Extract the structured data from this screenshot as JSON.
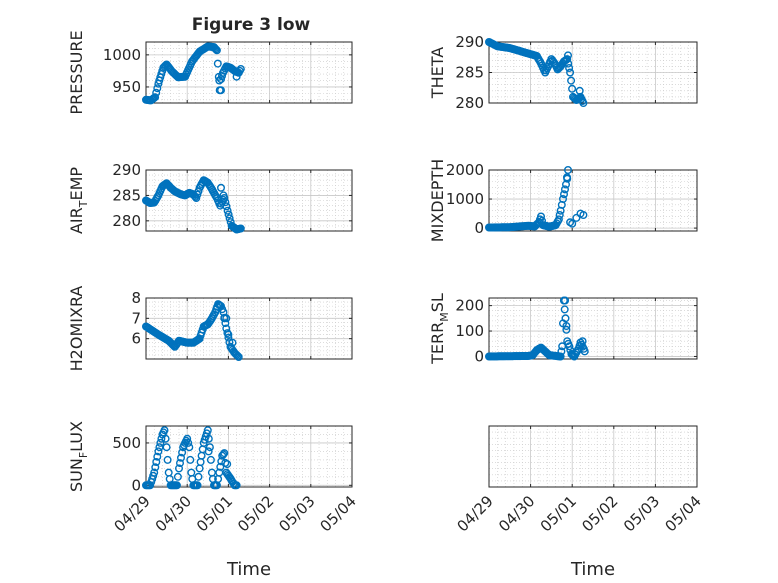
{
  "title": "Figure 3 low",
  "colors": {
    "marker": "#0072BD",
    "axis": "#262626",
    "grid": "#c8c8c8"
  },
  "chart_data": [
    {
      "type": "scatter",
      "ylabel": "PRESSURE",
      "ylim": [
        925,
        1020
      ],
      "yticks": [
        950,
        1000
      ],
      "anchors": [
        [
          0,
          930
        ],
        [
          0.12,
          929
        ],
        [
          0.22,
          934
        ],
        [
          0.3,
          955
        ],
        [
          0.42,
          980
        ],
        [
          0.5,
          985
        ],
        [
          0.62,
          975
        ],
        [
          0.78,
          965
        ],
        [
          0.95,
          966
        ],
        [
          1.12,
          990
        ],
        [
          1.3,
          1005
        ],
        [
          1.5,
          1013
        ],
        [
          1.65,
          1012
        ],
        [
          1.72,
          1007
        ],
        [
          1.79,
          945
        ],
        [
          1.82,
          962
        ],
        [
          1.87,
          972
        ],
        [
          1.95,
          982
        ],
        [
          2.05,
          980
        ],
        [
          2.15,
          975
        ],
        [
          2.25,
          972
        ],
        [
          2.3,
          978
        ]
      ],
      "isolated": [
        [
          1.78,
          960
        ],
        [
          1.82,
          945
        ],
        [
          2.2,
          966
        ]
      ]
    },
    {
      "type": "scatter",
      "ylabel": "THETA",
      "ylim": [
        280,
        290
      ],
      "yticks": [
        280,
        285,
        290
      ],
      "anchors": [
        [
          0,
          290
        ],
        [
          0.2,
          289.3
        ],
        [
          0.5,
          289.0
        ],
        [
          0.8,
          288.4
        ],
        [
          1.0,
          288.0
        ],
        [
          1.15,
          287.7
        ],
        [
          1.25,
          286.5
        ],
        [
          1.35,
          285.0
        ],
        [
          1.42,
          286.0
        ],
        [
          1.5,
          287.2
        ],
        [
          1.58,
          286.5
        ],
        [
          1.65,
          285.5
        ],
        [
          1.72,
          286.0
        ],
        [
          1.8,
          286.8
        ],
        [
          1.88,
          287.2
        ],
        [
          1.95,
          285.0
        ],
        [
          2.02,
          281.0
        ],
        [
          2.1,
          280.5
        ],
        [
          2.2,
          281.0
        ],
        [
          2.27,
          280.0
        ]
      ],
      "isolated": [
        [
          1.9,
          287.8
        ],
        [
          2.18,
          282.0
        ]
      ]
    },
    {
      "type": "scatter",
      "ylabel": "AIR",
      "ylabel_sub": "T",
      "ylabel_rest": "EMP",
      "ylim": [
        278,
        290
      ],
      "yticks": [
        280,
        285,
        290
      ],
      "anchors": [
        [
          0,
          284
        ],
        [
          0.1,
          283.5
        ],
        [
          0.2,
          283.6
        ],
        [
          0.3,
          285.0
        ],
        [
          0.4,
          286.8
        ],
        [
          0.5,
          287.4
        ],
        [
          0.6,
          286.5
        ],
        [
          0.7,
          285.8
        ],
        [
          0.85,
          285.2
        ],
        [
          0.95,
          285.0
        ],
        [
          1.05,
          285.5
        ],
        [
          1.15,
          285.2
        ],
        [
          1.22,
          284.5
        ],
        [
          1.3,
          286.5
        ],
        [
          1.4,
          288.0
        ],
        [
          1.5,
          287.5
        ],
        [
          1.58,
          286.5
        ],
        [
          1.65,
          285.5
        ],
        [
          1.72,
          284.5
        ],
        [
          1.8,
          283.0
        ],
        [
          1.9,
          284.5
        ],
        [
          1.98,
          282.0
        ],
        [
          2.08,
          279.0
        ],
        [
          2.2,
          278.3
        ],
        [
          2.3,
          278.5
        ]
      ],
      "isolated": [
        [
          1.82,
          286.5
        ],
        [
          1.88,
          285.0
        ]
      ]
    },
    {
      "type": "scatter",
      "ylabel": "MIXDEPTH",
      "ylim": [
        -100,
        2000
      ],
      "yticks": [
        0,
        1000,
        2000
      ],
      "anchors": [
        [
          0,
          20
        ],
        [
          0.5,
          30
        ],
        [
          0.95,
          80
        ],
        [
          1.1,
          60
        ],
        [
          1.2,
          200
        ],
        [
          1.25,
          400
        ],
        [
          1.3,
          100
        ],
        [
          1.45,
          50
        ],
        [
          1.6,
          100
        ],
        [
          1.68,
          300
        ],
        [
          1.72,
          600
        ],
        [
          1.78,
          1000
        ],
        [
          1.85,
          1500
        ],
        [
          1.9,
          2000
        ]
      ],
      "isolated": [
        [
          1.95,
          200
        ],
        [
          2.0,
          150
        ],
        [
          2.1,
          350
        ],
        [
          2.2,
          500
        ],
        [
          2.27,
          450
        ],
        [
          1.88,
          1700
        ]
      ]
    },
    {
      "type": "scatter",
      "ylabel": "H2OMIXRA",
      "ylim": [
        5,
        8
      ],
      "yticks": [
        6,
        7,
        8
      ],
      "anchors": [
        [
          0,
          6.6
        ],
        [
          0.3,
          6.2
        ],
        [
          0.55,
          5.9
        ],
        [
          0.7,
          5.6
        ],
        [
          0.8,
          5.9
        ],
        [
          1.0,
          5.8
        ],
        [
          1.15,
          5.8
        ],
        [
          1.3,
          6.0
        ],
        [
          1.4,
          6.6
        ],
        [
          1.5,
          6.7
        ],
        [
          1.6,
          7.0
        ],
        [
          1.68,
          7.3
        ],
        [
          1.75,
          7.7
        ],
        [
          1.82,
          7.6
        ],
        [
          1.88,
          7.3
        ],
        [
          1.95,
          6.5
        ],
        [
          2.05,
          5.6
        ],
        [
          2.15,
          5.3
        ],
        [
          2.25,
          5.1
        ]
      ],
      "isolated": [
        [
          1.9,
          7.0
        ],
        [
          1.95,
          7.0
        ],
        [
          2.0,
          6.2
        ],
        [
          2.1,
          5.8
        ]
      ]
    },
    {
      "type": "scatter",
      "ylabel": "TERR",
      "ylabel_sub": "M",
      "ylabel_rest": "SL",
      "ylim": [
        -10,
        230
      ],
      "yticks": [
        0,
        100,
        200
      ],
      "anchors": [
        [
          0,
          0
        ],
        [
          0.95,
          2
        ],
        [
          1.05,
          5
        ],
        [
          1.15,
          25
        ],
        [
          1.25,
          35
        ],
        [
          1.35,
          20
        ],
        [
          1.45,
          5
        ],
        [
          1.6,
          2
        ],
        [
          1.72,
          0
        ],
        [
          1.76,
          40
        ],
        [
          1.8,
          220
        ],
        [
          1.84,
          150
        ],
        [
          1.88,
          60
        ],
        [
          1.93,
          40
        ],
        [
          1.98,
          10
        ],
        [
          2.05,
          0
        ],
        [
          2.15,
          30
        ],
        [
          2.2,
          55
        ],
        [
          2.28,
          30
        ]
      ],
      "isolated": [
        [
          1.83,
          220
        ],
        [
          1.86,
          120
        ],
        [
          2.25,
          60
        ],
        [
          2.3,
          20
        ]
      ]
    },
    {
      "type": "scatter",
      "ylabel": "SUN",
      "ylabel_sub": "F",
      "ylabel_rest": "LUX",
      "ylim": [
        -20,
        700
      ],
      "yticks": [
        0,
        500
      ],
      "anchors": [
        [
          0,
          0
        ],
        [
          0.1,
          0
        ],
        [
          0.2,
          150
        ],
        [
          0.3,
          400
        ],
        [
          0.4,
          600
        ],
        [
          0.45,
          650
        ],
        [
          0.5,
          450
        ],
        [
          0.55,
          150
        ],
        [
          0.6,
          0
        ],
        [
          0.75,
          0
        ],
        [
          0.8,
          200
        ],
        [
          0.9,
          450
        ],
        [
          1.0,
          550
        ],
        [
          1.05,
          450
        ],
        [
          1.1,
          150
        ],
        [
          1.15,
          0
        ],
        [
          1.25,
          0
        ],
        [
          1.3,
          200
        ],
        [
          1.4,
          500
        ],
        [
          1.5,
          650
        ],
        [
          1.55,
          450
        ],
        [
          1.6,
          150
        ],
        [
          1.65,
          0
        ],
        [
          1.72,
          0
        ],
        [
          1.78,
          150
        ],
        [
          1.85,
          350
        ],
        [
          1.9,
          380
        ],
        [
          1.95,
          150
        ],
        [
          2.05,
          80
        ],
        [
          2.15,
          0
        ],
        [
          2.2,
          0
        ]
      ],
      "isolated": [
        [
          1.52,
          400
        ],
        [
          1.97,
          250
        ]
      ]
    }
  ],
  "xaxis": {
    "label": "Time",
    "ticks": [
      "04/29",
      "04/30",
      "05/01",
      "05/02",
      "05/03",
      "05/04"
    ]
  }
}
